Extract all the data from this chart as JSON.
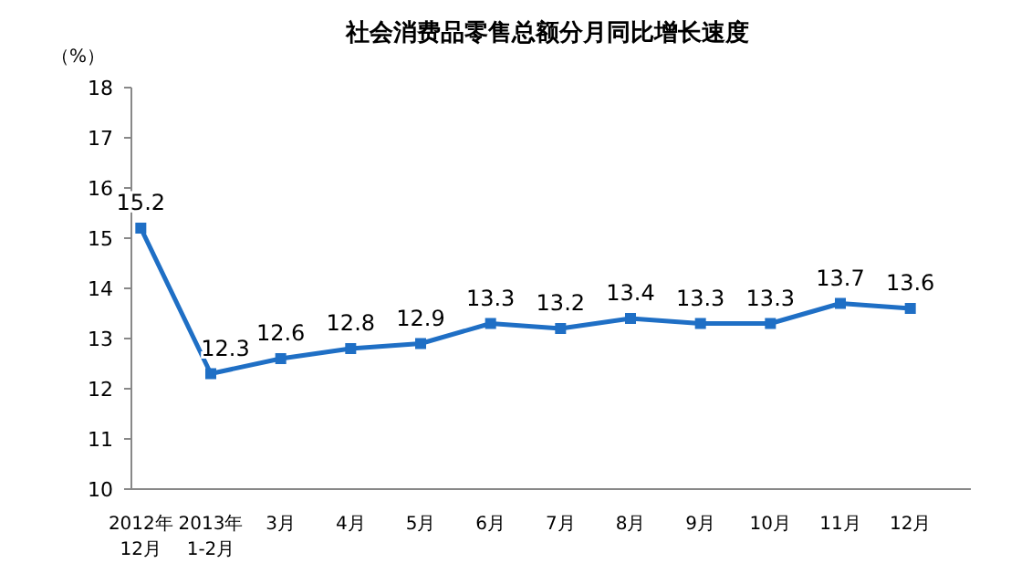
{
  "chart_data": {
    "type": "line",
    "title": "社会消费品零售总额分月同比增长速度",
    "ylabel": "（%）",
    "categories": [
      "2012年\n12月",
      "2013年\n1-2月",
      "3月",
      "4月",
      "5月",
      "6月",
      "7月",
      "8月",
      "9月",
      "10月",
      "11月",
      "12月"
    ],
    "values": [
      15.2,
      12.3,
      12.6,
      12.8,
      12.9,
      13.3,
      13.2,
      13.4,
      13.3,
      13.3,
      13.7,
      13.6
    ],
    "color": "#1f6fc5",
    "ylim": [
      10,
      18
    ],
    "yticks": [
      10,
      11,
      12,
      13,
      14,
      15,
      16,
      17,
      18
    ],
    "data_labels": true,
    "marker": "square"
  }
}
